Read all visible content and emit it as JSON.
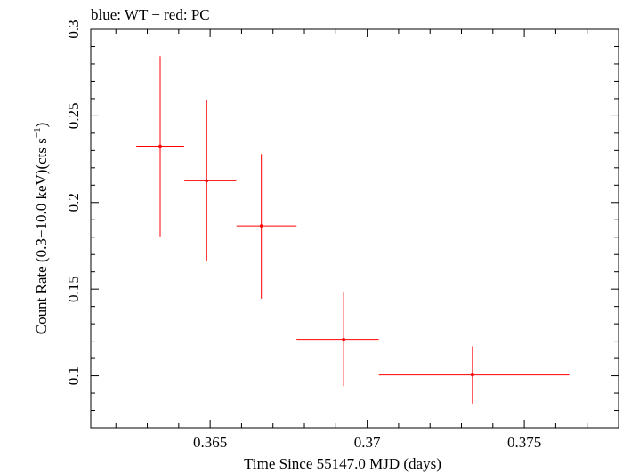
{
  "chart_data": {
    "type": "scatter",
    "title": "blue: WT − red: PC",
    "xlabel": "Time Since 55147.0 MJD (days)",
    "ylabel_main": "Count Rate (0.3−10.0 keV)(cts s",
    "ylabel_sup": "−1",
    "ylabel_end": ")",
    "xlim": [
      0.3612,
      0.378
    ],
    "ylim": [
      0.07,
      0.3
    ],
    "xticks": [
      {
        "value": 0.365,
        "label": "0.365"
      },
      {
        "value": 0.37,
        "label": "0.37"
      },
      {
        "value": 0.375,
        "label": "0.375"
      }
    ],
    "yticks": [
      {
        "value": 0.1,
        "label": "0.1"
      },
      {
        "value": 0.15,
        "label": "0.15"
      },
      {
        "value": 0.2,
        "label": "0.2"
      },
      {
        "value": 0.25,
        "label": "0.25"
      },
      {
        "value": 0.3,
        "label": "0.3"
      }
    ],
    "grid": false,
    "series": [
      {
        "name": "PC",
        "color": "#ff0000",
        "points": [
          {
            "x": 0.36341,
            "xlo": 0.36265,
            "xhi": 0.36417,
            "y": 0.2325,
            "ylo": 0.1805,
            "yhi": 0.2845
          },
          {
            "x": 0.36489,
            "xlo": 0.36418,
            "xhi": 0.36583,
            "y": 0.2125,
            "ylo": 0.166,
            "yhi": 0.2595
          },
          {
            "x": 0.36663,
            "xlo": 0.36584,
            "xhi": 0.36775,
            "y": 0.1865,
            "ylo": 0.1445,
            "yhi": 0.228
          },
          {
            "x": 0.36925,
            "xlo": 0.36775,
            "xhi": 0.37037,
            "y": 0.121,
            "ylo": 0.094,
            "yhi": 0.1485
          },
          {
            "x": 0.37335,
            "xlo": 0.37037,
            "xhi": 0.37643,
            "y": 0.1005,
            "ylo": 0.084,
            "yhi": 0.117
          }
        ]
      }
    ]
  }
}
